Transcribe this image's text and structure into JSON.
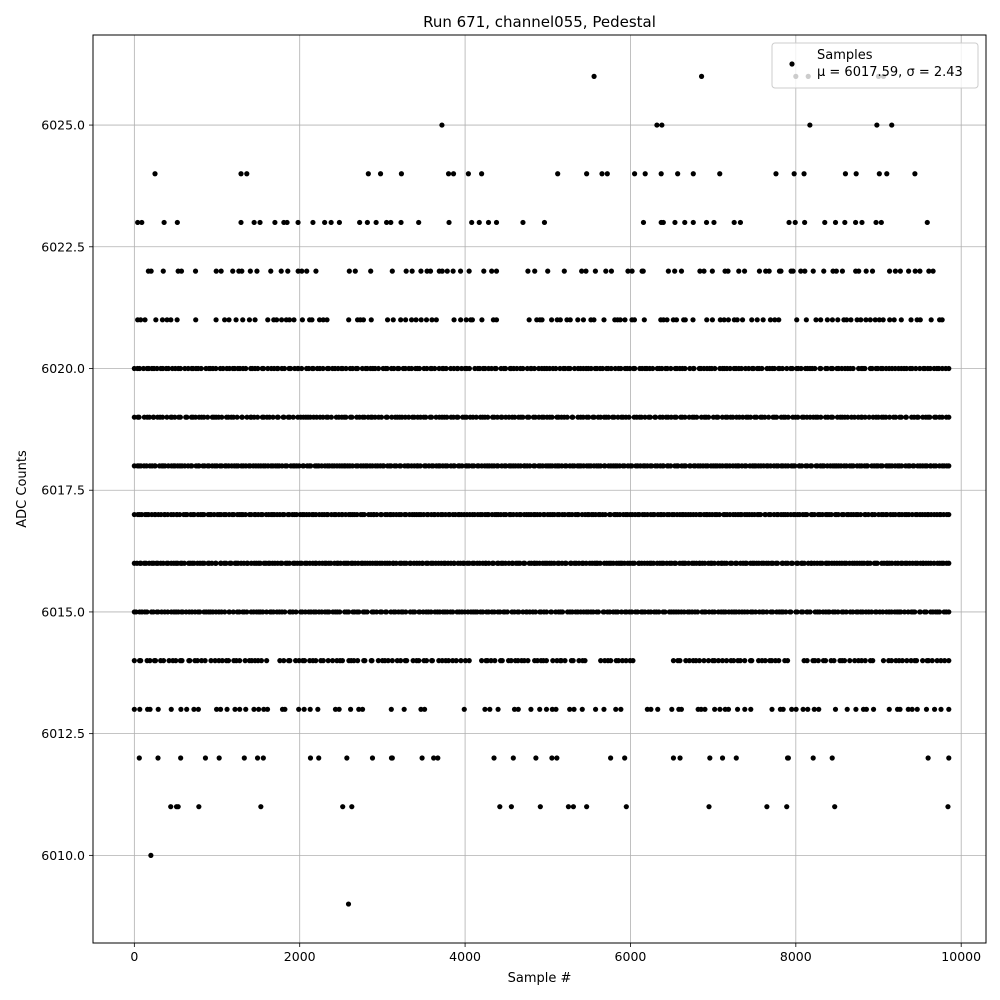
{
  "chart_data": {
    "type": "scatter",
    "title": "Run 671, channel055, Pedestal",
    "xlabel": "Sample #",
    "ylabel": "ADC Counts",
    "xlim": [
      -500,
      10300
    ],
    "ylim": [
      6008.2,
      6026.85
    ],
    "xticks": [
      0,
      2000,
      4000,
      6000,
      8000,
      10000
    ],
    "xtick_labels": [
      "0",
      "2000",
      "4000",
      "6000",
      "8000",
      "10000"
    ],
    "yticks": [
      6010.0,
      6012.5,
      6015.0,
      6017.5,
      6020.0,
      6022.5,
      6025.0
    ],
    "ytick_labels": [
      "6010.0",
      "6012.5",
      "6015.0",
      "6017.5",
      "6020.0",
      "6022.5",
      "6025.0"
    ],
    "grid": true,
    "legend_position": "top-right",
    "series": [
      {
        "name": "Samples",
        "color": "#000000",
        "annotation": "μ = 6017.59, σ = 2.43",
        "mean": 6017.59,
        "sigma": 2.43,
        "x_range": [
          0,
          9850
        ],
        "levels": [
          {
            "y": 6026,
            "segments": [
              [
                5560,
                5560
              ],
              [
                6860,
                6860
              ],
              [
                8000,
                8000
              ],
              [
                8150,
                8150
              ],
              [
                9000,
                9060
              ]
            ],
            "density": 1
          },
          {
            "y": 6025,
            "segments": [
              [
                3720,
                3720
              ],
              [
                6320,
                6380
              ],
              [
                8170,
                8170
              ],
              [
                8980,
                9160
              ]
            ],
            "density": 4
          },
          {
            "y": 6024,
            "segments": [
              [
                250,
                250
              ],
              [
                1290,
                1360
              ],
              [
                2160,
                2330
              ],
              [
                2830,
                3230
              ],
              [
                3580,
                3800
              ],
              [
                3860,
                4040
              ],
              [
                4200,
                4200
              ],
              [
                5120,
                5120
              ],
              [
                5470,
                5720
              ],
              [
                6050,
                6760
              ],
              [
                7080,
                7080
              ],
              [
                7760,
                7760
              ],
              [
                7980,
                8300
              ],
              [
                8600,
                8730
              ],
              [
                9010,
                9100
              ],
              [
                9440,
                9500
              ]
            ],
            "density": 6
          },
          {
            "y": 6023,
            "segments": [
              [
                40,
                90
              ],
              [
                360,
                360
              ],
              [
                520,
                640
              ],
              [
                1290,
                1520
              ],
              [
                1700,
                1980
              ],
              [
                2160,
                2380
              ],
              [
                2480,
                4380
              ],
              [
                4700,
                4700
              ],
              [
                4960,
                4960
              ],
              [
                5400,
                5760
              ],
              [
                6020,
                6760
              ],
              [
                6920,
                7330
              ],
              [
                7750,
                8350
              ],
              [
                8480,
                8800
              ],
              [
                8970,
                9590
              ]
            ],
            "density": 9
          },
          {
            "y": 6022,
            "segments": [
              [
                170,
                350
              ],
              [
                530,
                570
              ],
              [
                740,
                1050
              ],
              [
                1190,
                1520
              ],
              [
                1650,
                2250
              ],
              [
                2600,
                4380
              ],
              [
                4760,
                5200
              ],
              [
                5410,
                5770
              ],
              [
                5970,
                6760
              ],
              [
                6840,
                7180
              ],
              [
                7310,
                7380
              ],
              [
                7560,
                9730
              ]
            ],
            "density": 14
          },
          {
            "y": 6021,
            "segments": [
              [
                40,
                260
              ],
              [
                340,
                1460
              ],
              [
                1560,
                2330
              ],
              [
                2460,
                4380
              ],
              [
                4620,
                9850
              ]
            ],
            "density": 18
          },
          {
            "y": 6020,
            "segments": [
              [
                0,
                9850
              ]
            ],
            "density": 28
          },
          {
            "y": 6019,
            "segments": [
              [
                0,
                9850
              ]
            ],
            "density": 28
          },
          {
            "y": 6018,
            "segments": [
              [
                0,
                9850
              ]
            ],
            "density": 34
          },
          {
            "y": 6017,
            "segments": [
              [
                0,
                9850
              ]
            ],
            "density": 34
          },
          {
            "y": 6016,
            "segments": [
              [
                0,
                9850
              ]
            ],
            "density": 34
          },
          {
            "y": 6015,
            "segments": [
              [
                0,
                9850
              ]
            ],
            "density": 30
          },
          {
            "y": 6014,
            "segments": [
              [
                0,
                1600
              ],
              [
                1760,
                3120
              ],
              [
                3180,
                3800
              ],
              [
                3850,
                4050
              ],
              [
                4200,
                5450
              ],
              [
                5640,
                6030
              ],
              [
                6520,
                7900
              ],
              [
                8100,
                8930
              ],
              [
                9060,
                9850
              ]
            ],
            "density": 22
          },
          {
            "y": 6013,
            "segments": [
              [
                0,
                2760
              ],
              [
                3060,
                3660
              ],
              [
                3990,
                3990
              ],
              [
                4240,
                6330
              ],
              [
                6500,
                8940
              ],
              [
                9090,
                9130
              ],
              [
                9230,
                9260
              ],
              [
                9360,
                9850
              ]
            ],
            "density": 14
          },
          {
            "y": 6012,
            "segments": [
              [
                60,
                560
              ],
              [
                860,
                1330
              ],
              [
                1490,
                1560
              ],
              [
                1850,
                1880
              ],
              [
                2130,
                2230
              ],
              [
                2520,
                2570
              ],
              [
                2880,
                2880
              ],
              [
                3110,
                3120
              ],
              [
                3480,
                3480
              ],
              [
                3620,
                3670
              ],
              [
                4350,
                5050
              ],
              [
                5110,
                5280
              ],
              [
                5760,
                5930
              ],
              [
                6520,
                6600
              ],
              [
                6960,
                7280
              ],
              [
                7900,
                7910
              ],
              [
                8210,
                8210
              ],
              [
                8440,
                8440
              ],
              [
                9600,
                9850
              ]
            ],
            "density": 5
          },
          {
            "y": 6011,
            "segments": [
              [
                180,
                440
              ],
              [
                510,
                530
              ],
              [
                780,
                780
              ],
              [
                910,
                1070
              ],
              [
                1530,
                1530
              ],
              [
                2340,
                2520
              ],
              [
                2630,
                2630
              ],
              [
                4420,
                4560
              ],
              [
                4910,
                4910
              ],
              [
                5250,
                5310
              ],
              [
                5470,
                5470
              ],
              [
                5950,
                5950
              ],
              [
                6950,
                7150
              ],
              [
                7580,
                7650
              ],
              [
                7890,
                7890
              ],
              [
                8470,
                8470
              ],
              [
                9680,
                9840
              ]
            ],
            "density": 3
          },
          {
            "y": 6010,
            "segments": [
              [
                200,
                200
              ]
            ],
            "density": 1
          },
          {
            "y": 6009,
            "segments": [
              [
                2590,
                2590
              ]
            ],
            "density": 1
          }
        ]
      }
    ]
  }
}
